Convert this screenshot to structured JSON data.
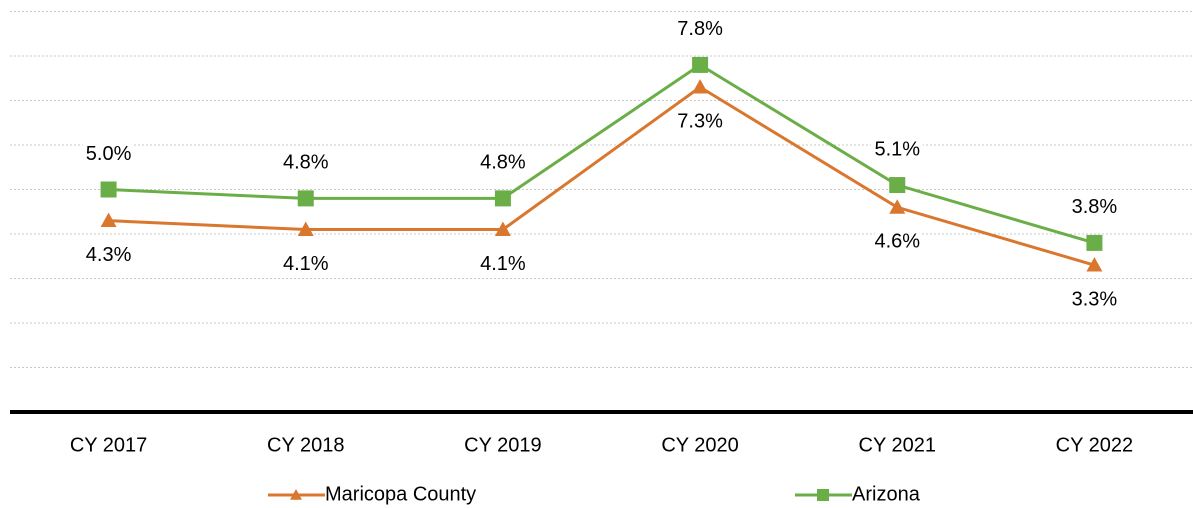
{
  "chart_data": {
    "type": "line",
    "categories": [
      "CY 2017",
      "CY 2018",
      "CY 2019",
      "CY 2020",
      "CY 2021",
      "CY 2022"
    ],
    "series": [
      {
        "name": "Maricopa County",
        "color": "#D9772F",
        "marker": "triangle",
        "label_position": "below",
        "values": [
          4.3,
          4.1,
          4.1,
          7.3,
          4.6,
          3.3
        ],
        "value_labels": [
          "4.3%",
          "4.1%",
          "4.1%",
          "7.3%",
          "4.6%",
          "3.3%"
        ]
      },
      {
        "name": "Arizona",
        "color": "#6AAE47",
        "marker": "square",
        "label_position": "above",
        "values": [
          5.0,
          4.8,
          4.8,
          7.8,
          5.1,
          3.8
        ],
        "value_labels": [
          "5.0%",
          "4.8%",
          "4.8%",
          "7.8%",
          "5.1%",
          "3.8%"
        ]
      }
    ],
    "ylim": [
      0,
      9
    ],
    "yticks": [
      0,
      1,
      2,
      3,
      4,
      5,
      6,
      7,
      8,
      9
    ],
    "grid": true,
    "legend": "bottom"
  }
}
